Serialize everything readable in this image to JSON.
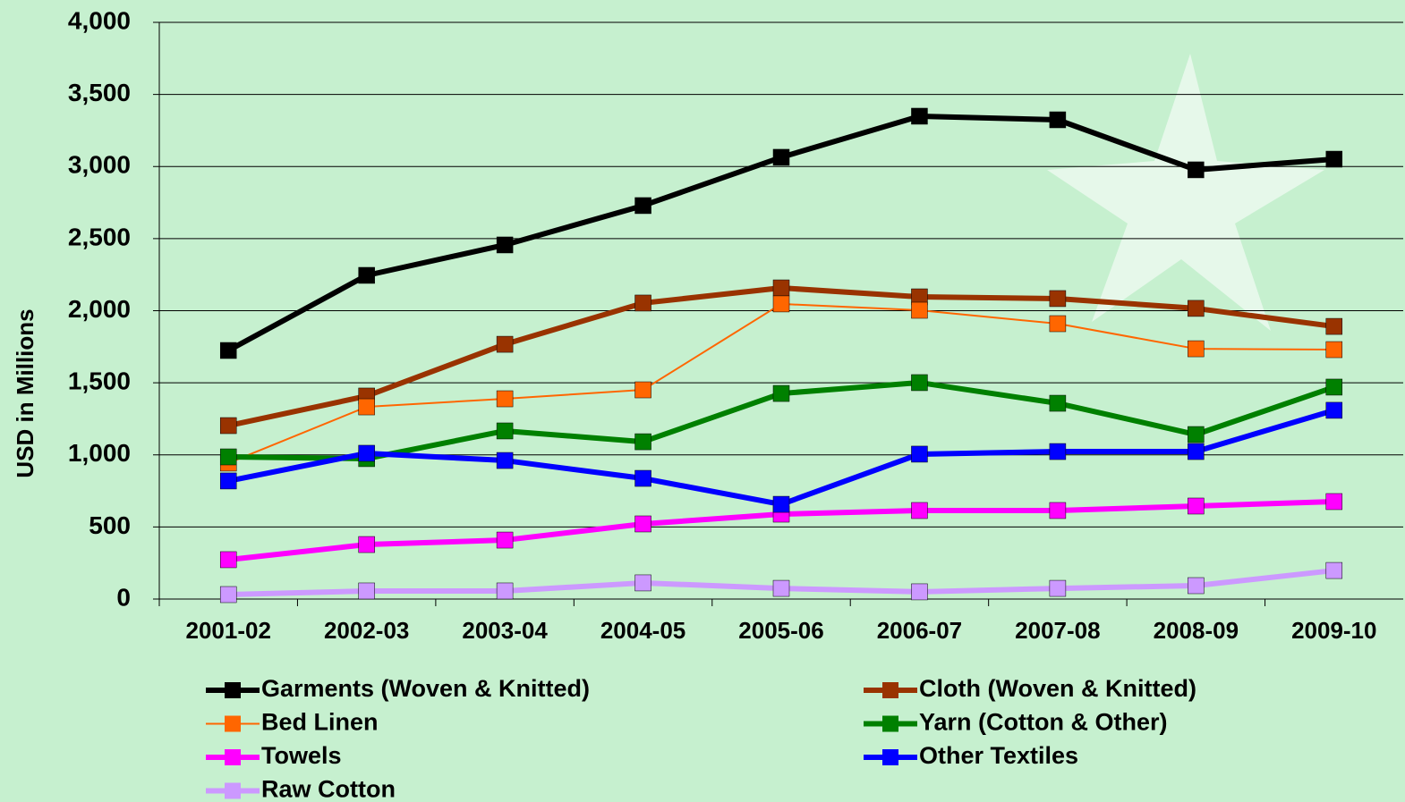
{
  "chart_data": {
    "type": "line",
    "y_label": "USD in Millions",
    "categories": [
      "2001-02",
      "2002-03",
      "2003-04",
      "2004-05",
      "2005-06",
      "2006-07",
      "2007-08",
      "2008-09",
      "2009-10"
    ],
    "ylim": [
      0,
      4000
    ],
    "yticks": [
      0,
      500,
      {
        "value": 1000,
        "label": "1,000"
      },
      {
        "value": 1500,
        "label": "1,500"
      },
      {
        "value": 2000,
        "label": "2,000"
      },
      {
        "value": 2500,
        "label": "2,500"
      },
      {
        "value": 3000,
        "label": "3,000"
      },
      {
        "value": 3500,
        "label": "3,500"
      },
      {
        "value": 4000,
        "label": "4,000"
      }
    ],
    "grid": true,
    "series": [
      {
        "name": "Garments (Woven & Knitted)",
        "color": "#000000",
        "line_width": 6,
        "values": [
          1724,
          2245,
          2456,
          2729,
          3064,
          3349,
          3324,
          2977,
          3051
        ]
      },
      {
        "name": "Cloth (Woven & Knitted)",
        "color": "#993300",
        "line_width": 6,
        "values": [
          1203,
          1408,
          1767,
          2053,
          2158,
          2096,
          2084,
          2016,
          1891
        ]
      },
      {
        "name": "Bed Linen",
        "color": "#ff6600",
        "line_width": 2,
        "values": [
          943,
          1333,
          1389,
          1451,
          2047,
          2003,
          1910,
          1736,
          1730
        ]
      },
      {
        "name": "Yarn (Cotton & Other)",
        "color": "#008000",
        "line_width": 6,
        "values": [
          986,
          974,
          1166,
          1091,
          1426,
          1501,
          1358,
          1141,
          1470
        ]
      },
      {
        "name": "Towels",
        "color": "#ff00ff",
        "line_width": 6,
        "values": [
          273,
          378,
          409,
          521,
          589,
          614,
          614,
          645,
          676
        ]
      },
      {
        "name": "Other Textiles",
        "color": "#0000ff",
        "line_width": 6,
        "values": [
          819,
          1011,
          961,
          837,
          657,
          1005,
          1023,
          1023,
          1309
        ]
      },
      {
        "name": "Raw Cotton",
        "color": "#cc99ff",
        "line_width": 6,
        "values": [
          31,
          56,
          56,
          112,
          74,
          50,
          74,
          93,
          198
        ]
      }
    ]
  }
}
